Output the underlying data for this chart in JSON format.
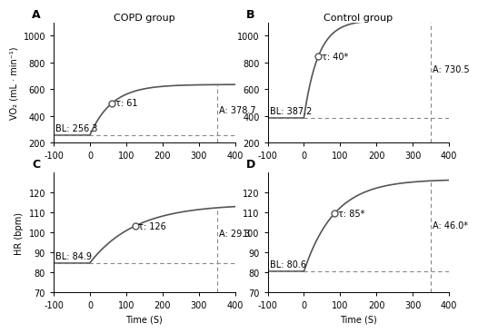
{
  "panels": [
    {
      "label": "A",
      "title": "COPD group",
      "ylabel": "VO₂ (mL · min⁻¹)",
      "BL": 256.3,
      "A": 378.7,
      "tau": 61,
      "tau_label": "τ: 61",
      "A_label": "A: 378.7",
      "BL_label": "BL: 256.3",
      "ylim": [
        200,
        1100
      ],
      "yticks": [
        200,
        400,
        600,
        800,
        1000
      ],
      "xlim": [
        -100,
        400
      ],
      "xticks": [
        -100,
        0,
        100,
        200,
        300,
        400
      ],
      "t0": 0,
      "show_xlabel": false
    },
    {
      "label": "B",
      "title": "Control group",
      "ylabel": "",
      "BL": 387.2,
      "A": 730.5,
      "tau": 40,
      "tau_label": "τ: 40*",
      "A_label": "A: 730.5",
      "BL_label": "BL: 387.2",
      "ylim": [
        200,
        1100
      ],
      "yticks": [
        200,
        400,
        600,
        800,
        1000
      ],
      "xlim": [
        -100,
        400
      ],
      "xticks": [
        -100,
        0,
        100,
        200,
        300,
        400
      ],
      "t0": 0,
      "show_xlabel": false
    },
    {
      "label": "C",
      "title": "",
      "ylabel": "HR (bpm)",
      "BL": 84.9,
      "A": 29.3,
      "tau": 126,
      "tau_label": "τ: 126",
      "A_label": "A: 29.3",
      "BL_label": "BL: 84.9",
      "ylim": [
        70,
        130
      ],
      "yticks": [
        70,
        80,
        90,
        100,
        110,
        120
      ],
      "xlim": [
        -100,
        400
      ],
      "xticks": [
        -100,
        0,
        100,
        200,
        300,
        400
      ],
      "t0": 0,
      "show_xlabel": true
    },
    {
      "label": "D",
      "title": "",
      "ylabel": "",
      "BL": 80.6,
      "A": 46.0,
      "tau": 85,
      "tau_label": "τ: 85*",
      "A_label": "A: 46.0*",
      "BL_label": "BL: 80.6",
      "ylim": [
        70,
        130
      ],
      "yticks": [
        70,
        80,
        90,
        100,
        110,
        120
      ],
      "xlim": [
        -100,
        400
      ],
      "xticks": [
        -100,
        0,
        100,
        200,
        300,
        400
      ],
      "t0": 0,
      "show_xlabel": true
    }
  ],
  "line_color": "#555555",
  "dot_color": "#555555",
  "dashed_color": "#888888",
  "font_size": 7,
  "title_font_size": 8
}
